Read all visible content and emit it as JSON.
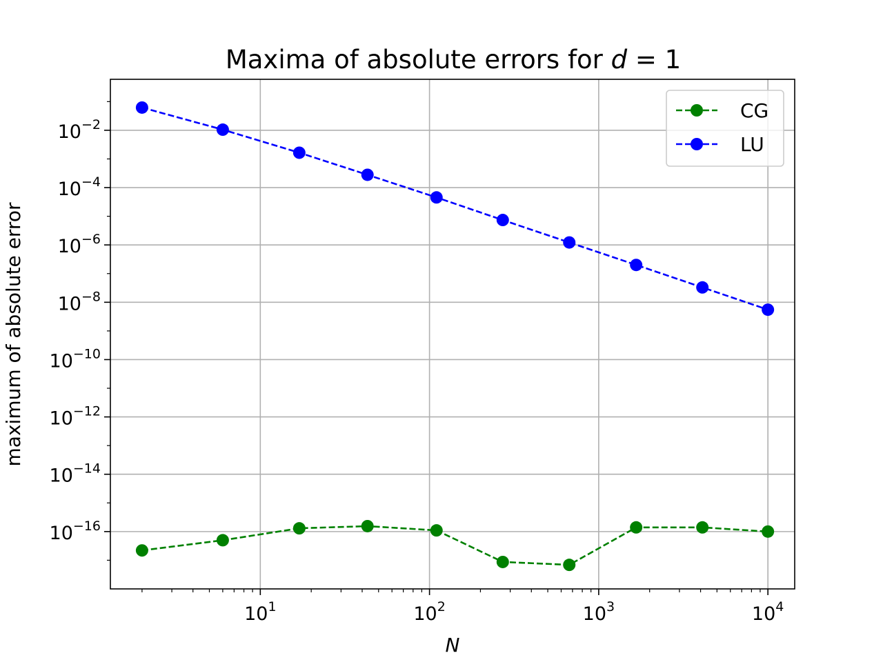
{
  "chart_data": {
    "type": "line",
    "title": "Maxima of absolute errors for",
    "title_var": "d",
    "title_rest": " = 1",
    "xlabel": "N",
    "ylabel": "maximum of absolute error",
    "xscale": "log",
    "yscale": "log",
    "xlim": [
      1.3,
      14400
    ],
    "ylim": [
      1e-18,
      0.6
    ],
    "grid": true,
    "legend_position": "top-right",
    "x_ticks": [
      {
        "value": 10,
        "base": "10",
        "exp": "1"
      },
      {
        "value": 100,
        "base": "10",
        "exp": "2"
      },
      {
        "value": 1000,
        "base": "10",
        "exp": "3"
      },
      {
        "value": 10000,
        "base": "10",
        "exp": "4"
      }
    ],
    "y_ticks": [
      {
        "value": 0.01,
        "base": "10",
        "exp": "−2"
      },
      {
        "value": 0.0001,
        "base": "10",
        "exp": "−4"
      },
      {
        "value": 1e-06,
        "base": "10",
        "exp": "−6"
      },
      {
        "value": 1e-08,
        "base": "10",
        "exp": "−8"
      },
      {
        "value": 1e-10,
        "base": "10",
        "exp": "−10"
      },
      {
        "value": 1e-12,
        "base": "10",
        "exp": "−12"
      },
      {
        "value": 1e-14,
        "base": "10",
        "exp": "−14"
      },
      {
        "value": 1e-16,
        "base": "10",
        "exp": "−16"
      }
    ],
    "x": [
      2,
      6,
      17,
      43,
      110,
      271,
      670,
      1665,
      4100,
      10000
    ],
    "series": [
      {
        "name": "CG",
        "color": "#008000",
        "linestyle": "dashed",
        "marker": "circle",
        "values": [
          2.2e-17,
          5e-17,
          1.3e-16,
          1.55e-16,
          1.1e-16,
          8.7e-18,
          6.9e-18,
          1.4e-16,
          1.4e-16,
          1e-16
        ]
      },
      {
        "name": "LU",
        "color": "#0000ff",
        "linestyle": "dashed",
        "marker": "circle",
        "values": [
          0.062,
          0.0105,
          0.00165,
          0.00028,
          4.55e-05,
          7.4e-06,
          1.22e-06,
          2e-07,
          3.3e-08,
          5.5e-09
        ]
      }
    ]
  }
}
